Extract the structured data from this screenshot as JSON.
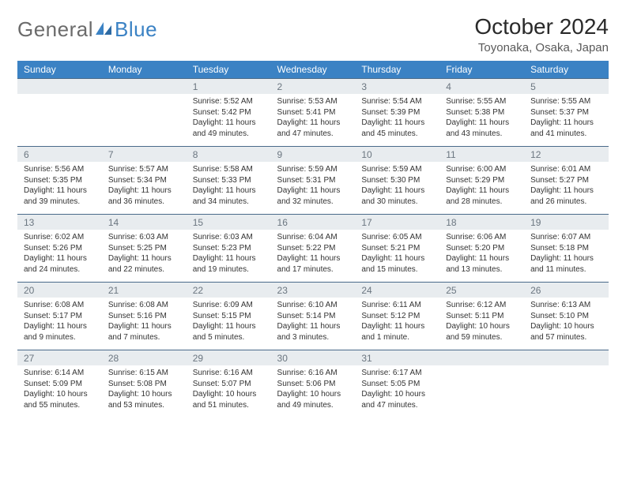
{
  "logo": {
    "part1": "General",
    "part2": "Blue"
  },
  "header": {
    "month_title": "October 2024",
    "location": "Toyonaka, Osaka, Japan"
  },
  "styling": {
    "header_blue": "#3b82c4",
    "row_stripe": "#e8ecef",
    "divider": "#4a6a8a",
    "logo_gray": "#6b6b6b",
    "logo_blue": "#3b82c4",
    "background": "#ffffff",
    "daynum_fontsize": 12,
    "body_fontsize": 10,
    "header_fontsize": 12,
    "title_fontsize": 28,
    "location_fontsize": 15
  },
  "weekdays": [
    "Sunday",
    "Monday",
    "Tuesday",
    "Wednesday",
    "Thursday",
    "Friday",
    "Saturday"
  ],
  "weeks": [
    [
      {
        "n": "",
        "sunrise": "",
        "sunset": "",
        "daylight": ""
      },
      {
        "n": "",
        "sunrise": "",
        "sunset": "",
        "daylight": ""
      },
      {
        "n": "1",
        "sunrise": "Sunrise: 5:52 AM",
        "sunset": "Sunset: 5:42 PM",
        "daylight": "Daylight: 11 hours and 49 minutes."
      },
      {
        "n": "2",
        "sunrise": "Sunrise: 5:53 AM",
        "sunset": "Sunset: 5:41 PM",
        "daylight": "Daylight: 11 hours and 47 minutes."
      },
      {
        "n": "3",
        "sunrise": "Sunrise: 5:54 AM",
        "sunset": "Sunset: 5:39 PM",
        "daylight": "Daylight: 11 hours and 45 minutes."
      },
      {
        "n": "4",
        "sunrise": "Sunrise: 5:55 AM",
        "sunset": "Sunset: 5:38 PM",
        "daylight": "Daylight: 11 hours and 43 minutes."
      },
      {
        "n": "5",
        "sunrise": "Sunrise: 5:55 AM",
        "sunset": "Sunset: 5:37 PM",
        "daylight": "Daylight: 11 hours and 41 minutes."
      }
    ],
    [
      {
        "n": "6",
        "sunrise": "Sunrise: 5:56 AM",
        "sunset": "Sunset: 5:35 PM",
        "daylight": "Daylight: 11 hours and 39 minutes."
      },
      {
        "n": "7",
        "sunrise": "Sunrise: 5:57 AM",
        "sunset": "Sunset: 5:34 PM",
        "daylight": "Daylight: 11 hours and 36 minutes."
      },
      {
        "n": "8",
        "sunrise": "Sunrise: 5:58 AM",
        "sunset": "Sunset: 5:33 PM",
        "daylight": "Daylight: 11 hours and 34 minutes."
      },
      {
        "n": "9",
        "sunrise": "Sunrise: 5:59 AM",
        "sunset": "Sunset: 5:31 PM",
        "daylight": "Daylight: 11 hours and 32 minutes."
      },
      {
        "n": "10",
        "sunrise": "Sunrise: 5:59 AM",
        "sunset": "Sunset: 5:30 PM",
        "daylight": "Daylight: 11 hours and 30 minutes."
      },
      {
        "n": "11",
        "sunrise": "Sunrise: 6:00 AM",
        "sunset": "Sunset: 5:29 PM",
        "daylight": "Daylight: 11 hours and 28 minutes."
      },
      {
        "n": "12",
        "sunrise": "Sunrise: 6:01 AM",
        "sunset": "Sunset: 5:27 PM",
        "daylight": "Daylight: 11 hours and 26 minutes."
      }
    ],
    [
      {
        "n": "13",
        "sunrise": "Sunrise: 6:02 AM",
        "sunset": "Sunset: 5:26 PM",
        "daylight": "Daylight: 11 hours and 24 minutes."
      },
      {
        "n": "14",
        "sunrise": "Sunrise: 6:03 AM",
        "sunset": "Sunset: 5:25 PM",
        "daylight": "Daylight: 11 hours and 22 minutes."
      },
      {
        "n": "15",
        "sunrise": "Sunrise: 6:03 AM",
        "sunset": "Sunset: 5:23 PM",
        "daylight": "Daylight: 11 hours and 19 minutes."
      },
      {
        "n": "16",
        "sunrise": "Sunrise: 6:04 AM",
        "sunset": "Sunset: 5:22 PM",
        "daylight": "Daylight: 11 hours and 17 minutes."
      },
      {
        "n": "17",
        "sunrise": "Sunrise: 6:05 AM",
        "sunset": "Sunset: 5:21 PM",
        "daylight": "Daylight: 11 hours and 15 minutes."
      },
      {
        "n": "18",
        "sunrise": "Sunrise: 6:06 AM",
        "sunset": "Sunset: 5:20 PM",
        "daylight": "Daylight: 11 hours and 13 minutes."
      },
      {
        "n": "19",
        "sunrise": "Sunrise: 6:07 AM",
        "sunset": "Sunset: 5:18 PM",
        "daylight": "Daylight: 11 hours and 11 minutes."
      }
    ],
    [
      {
        "n": "20",
        "sunrise": "Sunrise: 6:08 AM",
        "sunset": "Sunset: 5:17 PM",
        "daylight": "Daylight: 11 hours and 9 minutes."
      },
      {
        "n": "21",
        "sunrise": "Sunrise: 6:08 AM",
        "sunset": "Sunset: 5:16 PM",
        "daylight": "Daylight: 11 hours and 7 minutes."
      },
      {
        "n": "22",
        "sunrise": "Sunrise: 6:09 AM",
        "sunset": "Sunset: 5:15 PM",
        "daylight": "Daylight: 11 hours and 5 minutes."
      },
      {
        "n": "23",
        "sunrise": "Sunrise: 6:10 AM",
        "sunset": "Sunset: 5:14 PM",
        "daylight": "Daylight: 11 hours and 3 minutes."
      },
      {
        "n": "24",
        "sunrise": "Sunrise: 6:11 AM",
        "sunset": "Sunset: 5:12 PM",
        "daylight": "Daylight: 11 hours and 1 minute."
      },
      {
        "n": "25",
        "sunrise": "Sunrise: 6:12 AM",
        "sunset": "Sunset: 5:11 PM",
        "daylight": "Daylight: 10 hours and 59 minutes."
      },
      {
        "n": "26",
        "sunrise": "Sunrise: 6:13 AM",
        "sunset": "Sunset: 5:10 PM",
        "daylight": "Daylight: 10 hours and 57 minutes."
      }
    ],
    [
      {
        "n": "27",
        "sunrise": "Sunrise: 6:14 AM",
        "sunset": "Sunset: 5:09 PM",
        "daylight": "Daylight: 10 hours and 55 minutes."
      },
      {
        "n": "28",
        "sunrise": "Sunrise: 6:15 AM",
        "sunset": "Sunset: 5:08 PM",
        "daylight": "Daylight: 10 hours and 53 minutes."
      },
      {
        "n": "29",
        "sunrise": "Sunrise: 6:16 AM",
        "sunset": "Sunset: 5:07 PM",
        "daylight": "Daylight: 10 hours and 51 minutes."
      },
      {
        "n": "30",
        "sunrise": "Sunrise: 6:16 AM",
        "sunset": "Sunset: 5:06 PM",
        "daylight": "Daylight: 10 hours and 49 minutes."
      },
      {
        "n": "31",
        "sunrise": "Sunrise: 6:17 AM",
        "sunset": "Sunset: 5:05 PM",
        "daylight": "Daylight: 10 hours and 47 minutes."
      },
      {
        "n": "",
        "sunrise": "",
        "sunset": "",
        "daylight": ""
      },
      {
        "n": "",
        "sunrise": "",
        "sunset": "",
        "daylight": ""
      }
    ]
  ]
}
